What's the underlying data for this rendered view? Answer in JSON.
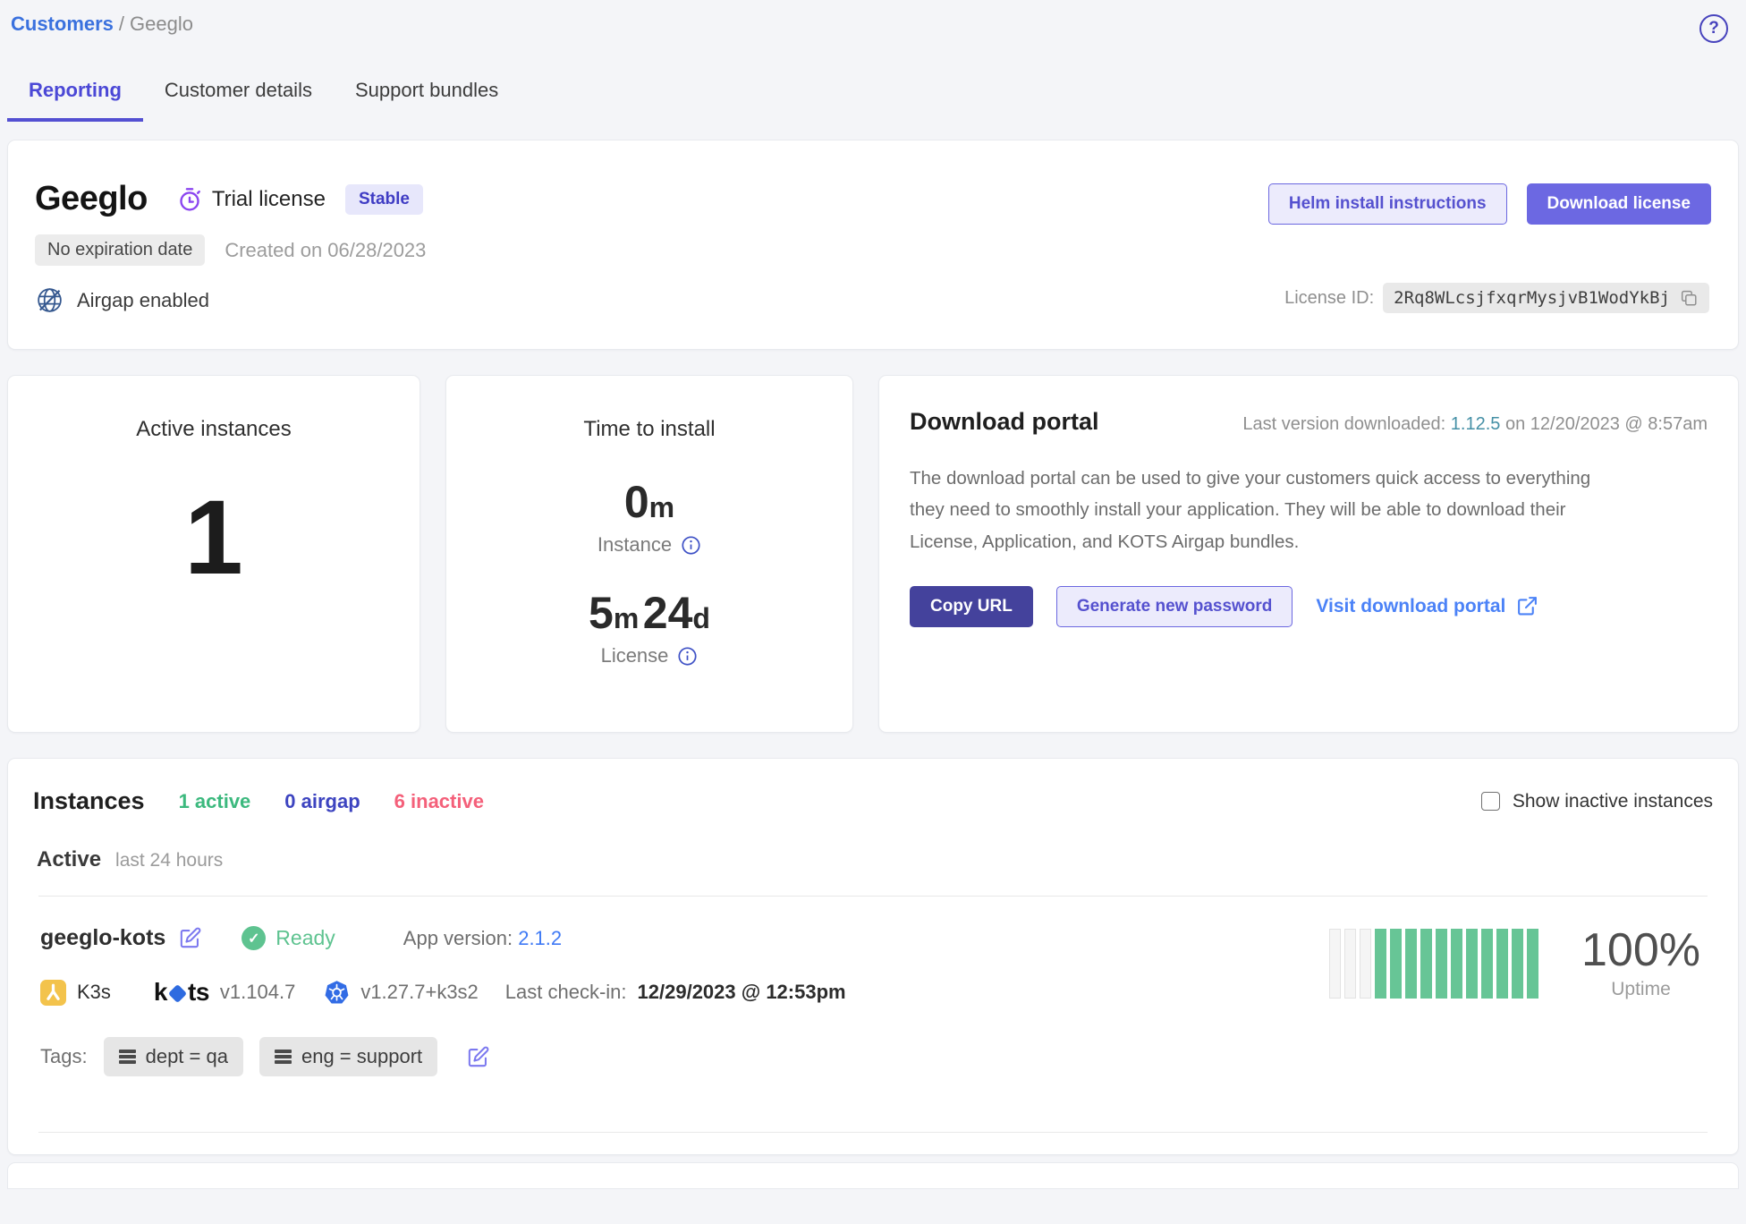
{
  "breadcrumb": {
    "root": "Customers",
    "separator": "/",
    "current": "Geeglo"
  },
  "tabs": [
    {
      "label": "Reporting",
      "active": true
    },
    {
      "label": "Customer details",
      "active": false
    },
    {
      "label": "Support bundles",
      "active": false
    }
  ],
  "license_card": {
    "customer_name": "Geeglo",
    "license_type": "Trial license",
    "channel_badge": "Stable",
    "expiration_badge": "No expiration date",
    "created_text": "Created on 06/28/2023",
    "airgap_text": "Airgap enabled",
    "helm_button": "Helm install instructions",
    "download_button": "Download license",
    "license_id_label": "License ID:",
    "license_id": "2Rq8WLcsjfxqrMysjvB1WodYkBj"
  },
  "metrics": {
    "active_instances": {
      "title": "Active instances",
      "value": "1"
    },
    "time_to_install": {
      "title": "Time to install",
      "instance_value": "0",
      "instance_unit": "m",
      "instance_label": "Instance",
      "license_value1": "5",
      "license_unit1": "m",
      "license_value2": "24",
      "license_unit2": "d",
      "license_label": "License"
    }
  },
  "download_portal": {
    "title": "Download portal",
    "last_version_prefix": "Last version downloaded:",
    "last_version": "1.12.5",
    "last_version_suffix": "on 12/20/2023 @ 8:57am",
    "description": "The download portal can be used to give your customers quick access to everything they need to smoothly install your application. They will be able to download their License, Application, and KOTS Airgap bundles.",
    "copy_url_button": "Copy URL",
    "generate_password_button": "Generate new password",
    "visit_link": "Visit download portal"
  },
  "instances": {
    "title": "Instances",
    "active_count": "1 active",
    "airgap_count": "0 airgap",
    "inactive_count": "6 inactive",
    "show_inactive_label": "Show inactive instances",
    "section_label": "Active",
    "section_sublabel": "last 24 hours",
    "row": {
      "name": "geeglo-kots",
      "status": "Ready",
      "app_version_label": "App version:",
      "app_version": "2.1.2",
      "distro": "K3s",
      "kots_version": "v1.104.7",
      "k8s_version": "v1.27.7+k3s2",
      "last_checkin_label": "Last check-in:",
      "last_checkin": "12/29/2023 @ 12:53pm",
      "uptime_value": "100%",
      "uptime_label": "Uptime",
      "tags_label": "Tags:",
      "tags": [
        "dept = qa",
        "eng = support"
      ],
      "uptime_bars": {
        "empty": 3,
        "filled": 11
      }
    }
  },
  "colors": {
    "accent_indigo": "#6c68e2",
    "dark_indigo": "#44429c",
    "link_blue": "#4b82f7",
    "teal_link": "#4590a6",
    "success_green": "#5ec390",
    "bar_green": "#67c596",
    "inactive_pink": "#f4607a",
    "page_bg": "#f4f5f8"
  }
}
